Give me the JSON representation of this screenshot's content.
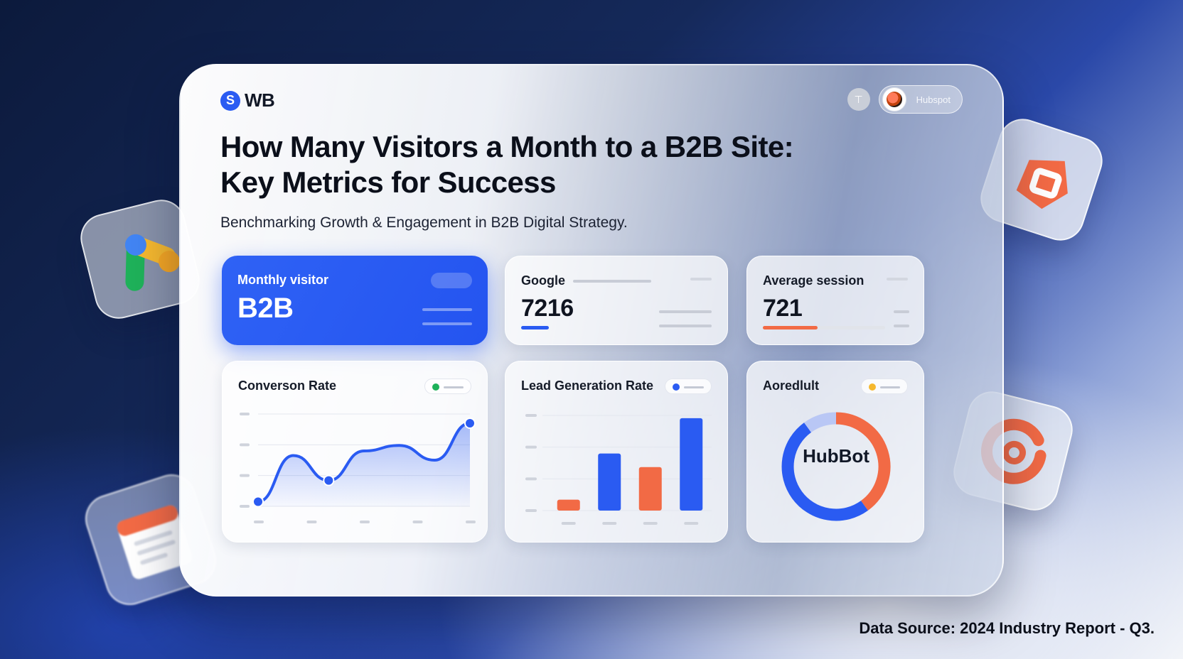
{
  "header": {
    "logo_text": "WB",
    "logo_mark": "S",
    "profile_name": "Hubspot"
  },
  "headline": {
    "line1": "How Many Visitors a Month to a B2B Site:",
    "line2": "Key Metrics for Success"
  },
  "subtitle": "Benchmarking Growth & Engagement in B2B Digital Strategy.",
  "cards": {
    "monthly": {
      "title": "Monthly visitor",
      "value": "B2B"
    },
    "google": {
      "title": "Google",
      "value": "7216",
      "progress": 0.14
    },
    "session": {
      "title": "Average session",
      "value": "721",
      "progress": 0.45
    }
  },
  "charts": {
    "conversion": {
      "title": "Converson Rate"
    },
    "lead": {
      "title": "Lead Generation Rate"
    },
    "donut": {
      "title": "Aoredlult",
      "center_label": "HubBot"
    }
  },
  "footer": {
    "source": "Data Source: 2024 Industry Report - Q3."
  },
  "icons": [
    "google-ads-icon",
    "hubspot-icon",
    "target-icon",
    "document-icon",
    "settings-icon"
  ],
  "colors": {
    "accent": "#2a5bf2",
    "orange": "#f26a45",
    "green": "#1fb25a",
    "yellow": "#f5b82e"
  },
  "chart_data": [
    {
      "type": "line",
      "x": [
        0,
        1,
        2,
        3,
        4,
        5,
        6
      ],
      "values": [
        5,
        55,
        28,
        60,
        66,
        50,
        90
      ],
      "ylim": [
        0,
        100
      ],
      "markers": [
        0,
        2,
        6
      ]
    },
    {
      "type": "bar",
      "values": [
        8,
        42,
        32,
        68
      ],
      "colors": [
        "#f26a45",
        "#2a5bf2",
        "#f26a45",
        "#2a5bf2"
      ],
      "ylim": [
        0,
        70
      ]
    },
    {
      "type": "pie",
      "values": [
        40,
        50,
        10
      ],
      "colors": [
        "#f26a45",
        "#2a5bf2",
        "#b9c7f5"
      ]
    }
  ]
}
